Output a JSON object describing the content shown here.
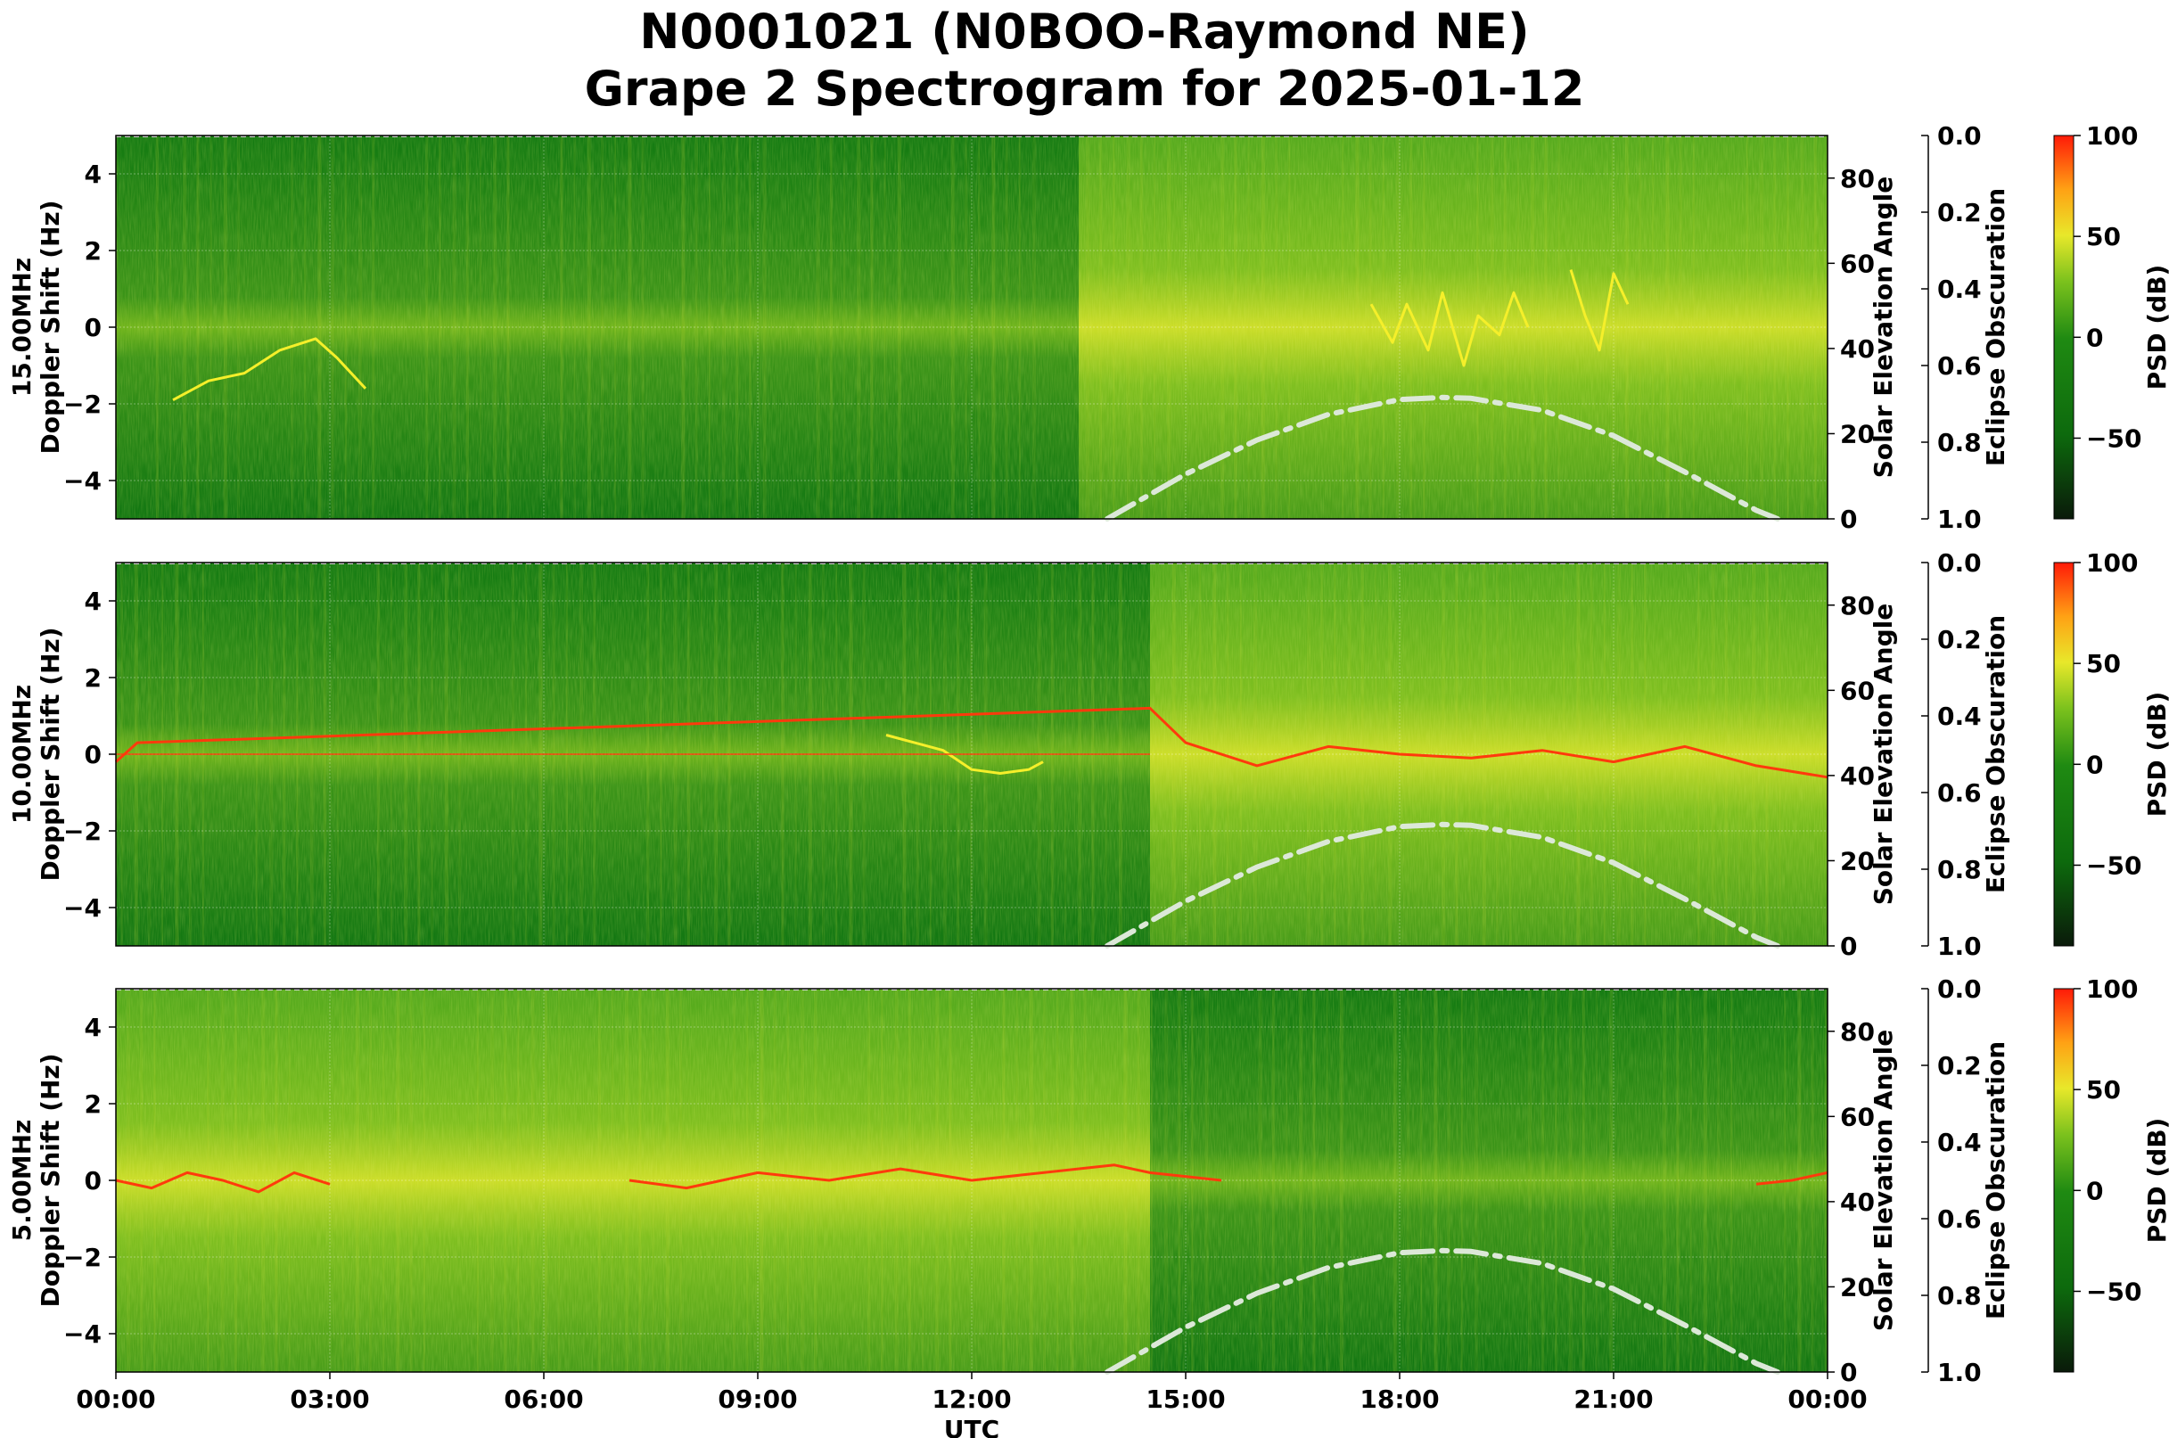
{
  "title_line1": "N0001021 (N0BOO-Raymond NE)",
  "title_line2": "Grape 2 Spectrogram for 2025-01-12",
  "xlabel": "UTC",
  "chart_data": {
    "type": "heatmap",
    "title": "N0001021 (N0BOO-Raymond NE) Grape 2 Spectrogram for 2025-01-12",
    "x_tick_labels": [
      "00:00",
      "03:00",
      "06:00",
      "09:00",
      "12:00",
      "15:00",
      "18:00",
      "21:00",
      "00:00"
    ],
    "x_range_hours": [
      0,
      24
    ],
    "xlabel": "UTC",
    "y_range_hz": [
      -5,
      5
    ],
    "y_ticks": [
      4,
      2,
      0,
      -2,
      -4
    ],
    "y_tick_labels": [
      "4",
      "2",
      "0",
      "−2",
      "−4"
    ],
    "elev_ticks": [
      0,
      20,
      40,
      60,
      80
    ],
    "elev_range": [
      0,
      90
    ],
    "elev_label": "Solar Elevation Angle",
    "ecl_ticks": [
      "0.0",
      "0.2",
      "0.4",
      "0.6",
      "0.8",
      "1.0"
    ],
    "ecl_label": "Eclipse Obscuration",
    "cbar_ticks": [
      100,
      50,
      0,
      -50
    ],
    "cbar_tick_labels": [
      "100",
      "50",
      "0",
      "−50"
    ],
    "cbar_range": [
      -90,
      100
    ],
    "cbar_label": "PSD (dB)",
    "grid": true,
    "colors": {
      "bg_green": "#0e7a0e",
      "mid_green": "#55ad1c",
      "yellow": "#f5ef2a",
      "red": "#ff3a0c",
      "solar_curve": "#dce8d8"
    },
    "solar_elevation_curve": {
      "x_hours": [
        13.9,
        15,
        16,
        17,
        18,
        18.6,
        19,
        20,
        21,
        22,
        23,
        23.3
      ],
      "elev_deg": [
        0,
        10.5,
        18.5,
        24.5,
        28,
        28.5,
        28.3,
        25.5,
        19.5,
        11,
        2,
        0
      ]
    },
    "panels": [
      {
        "ylabel_line1": "15.00MHz",
        "ylabel_line2": "Doppler Shift (Hz)",
        "bright_hours": [
          [
            13.5,
            24
          ]
        ],
        "traces": [
          {
            "style": "yellow",
            "x_hours": [
              0.8,
              1.3,
              1.8,
              2.3,
              2.8,
              3.1,
              3.5
            ],
            "hz": [
              -1.9,
              -1.4,
              -1.2,
              -0.6,
              -0.3,
              -0.8,
              -1.6
            ]
          },
          {
            "style": "yellow",
            "x_hours": [
              17.6,
              17.9,
              18.1,
              18.4,
              18.6,
              18.9,
              19.1,
              19.4,
              19.6,
              19.8
            ],
            "hz": [
              0.6,
              -0.4,
              0.6,
              -0.6,
              0.9,
              -1.0,
              0.3,
              -0.2,
              0.9,
              0.0
            ]
          },
          {
            "style": "yellow",
            "x_hours": [
              20.4,
              20.6,
              20.8,
              21.0,
              21.2
            ],
            "hz": [
              1.5,
              0.3,
              -0.6,
              1.4,
              0.6
            ]
          }
        ]
      },
      {
        "ylabel_line1": "10.00MHz",
        "ylabel_line2": "Doppler Shift (Hz)",
        "bright_hours": [
          [
            14.5,
            24
          ]
        ],
        "traces": [
          {
            "style": "red",
            "x_hours": [
              0,
              0.3,
              14.5,
              15,
              16,
              17,
              18,
              19,
              20,
              21,
              22,
              23,
              24
            ],
            "hz": [
              -0.2,
              0.3,
              1.2,
              0.3,
              -0.3,
              0.2,
              0.0,
              -0.1,
              0.1,
              -0.2,
              0.2,
              -0.3,
              -0.6
            ]
          },
          {
            "style": "yellow",
            "x_hours": [
              10.8,
              11.2,
              11.6,
              12.0,
              12.4,
              12.8,
              13.0
            ],
            "hz": [
              0.5,
              0.3,
              0.1,
              -0.4,
              -0.5,
              -0.4,
              -0.2
            ]
          }
        ]
      },
      {
        "ylabel_line1": "5.00MHz",
        "ylabel_line2": "Doppler Shift (Hz)",
        "bright_hours": [
          [
            0,
            14.5
          ]
        ],
        "traces": [
          {
            "style": "red",
            "x_hours": [
              0,
              0.5,
              1,
              1.5,
              2,
              2.5,
              3.0
            ],
            "hz": [
              0.0,
              -0.2,
              0.2,
              0.0,
              -0.3,
              0.2,
              -0.1
            ]
          },
          {
            "style": "red",
            "x_hours": [
              7.2,
              8,
              9,
              10,
              11,
              12,
              13,
              14,
              14.5,
              15.5
            ],
            "hz": [
              0.0,
              -0.2,
              0.2,
              0.0,
              0.3,
              0.0,
              0.2,
              0.4,
              0.2,
              0.0
            ]
          },
          {
            "style": "red",
            "x_hours": [
              23.0,
              23.5,
              24
            ],
            "hz": [
              -0.1,
              0.0,
              0.2
            ]
          }
        ]
      }
    ]
  }
}
